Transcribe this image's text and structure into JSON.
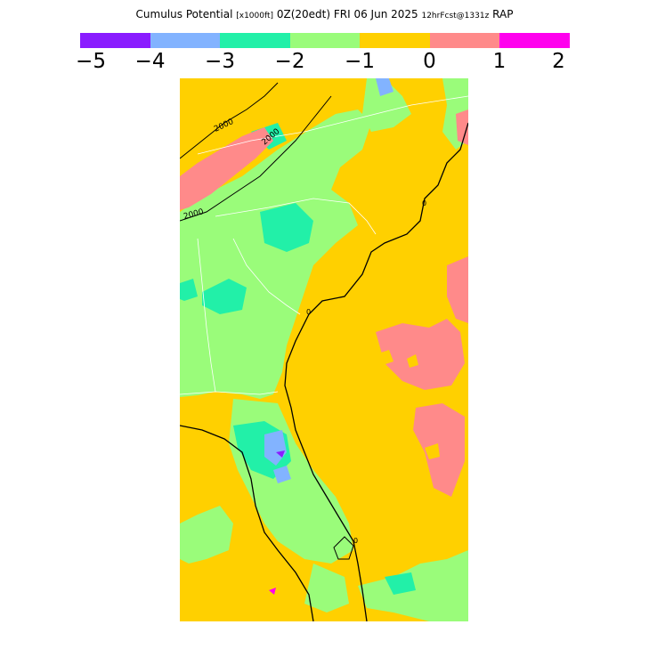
{
  "title": {
    "main": "Cumulus Potential",
    "units": "[x1000ft]",
    "valid": "0Z(20edt) FRI 06 Jun 2025",
    "forecast": "12hrFcst@1331z",
    "model": "RAP"
  },
  "legend": {
    "colors": [
      "#8a1cff",
      "#82b3ff",
      "#22f0a8",
      "#9afc7a",
      "#ffd000",
      "#ff8a8a",
      "#ff00ee"
    ],
    "labels": [
      "−5",
      "−4",
      "−3",
      "−2",
      "−1",
      "0",
      "1",
      "2"
    ]
  },
  "contour_labels": [
    "2000",
    "2000",
    "2000",
    "0",
    "0",
    "0"
  ],
  "map_colors": {
    "base": "#ffd000",
    "green": "#9afc7a",
    "teal": "#22f0a8",
    "blue": "#82b3ff",
    "pink": "#ff8a8a",
    "purple": "#8a1cff",
    "magenta": "#ff00ee"
  }
}
